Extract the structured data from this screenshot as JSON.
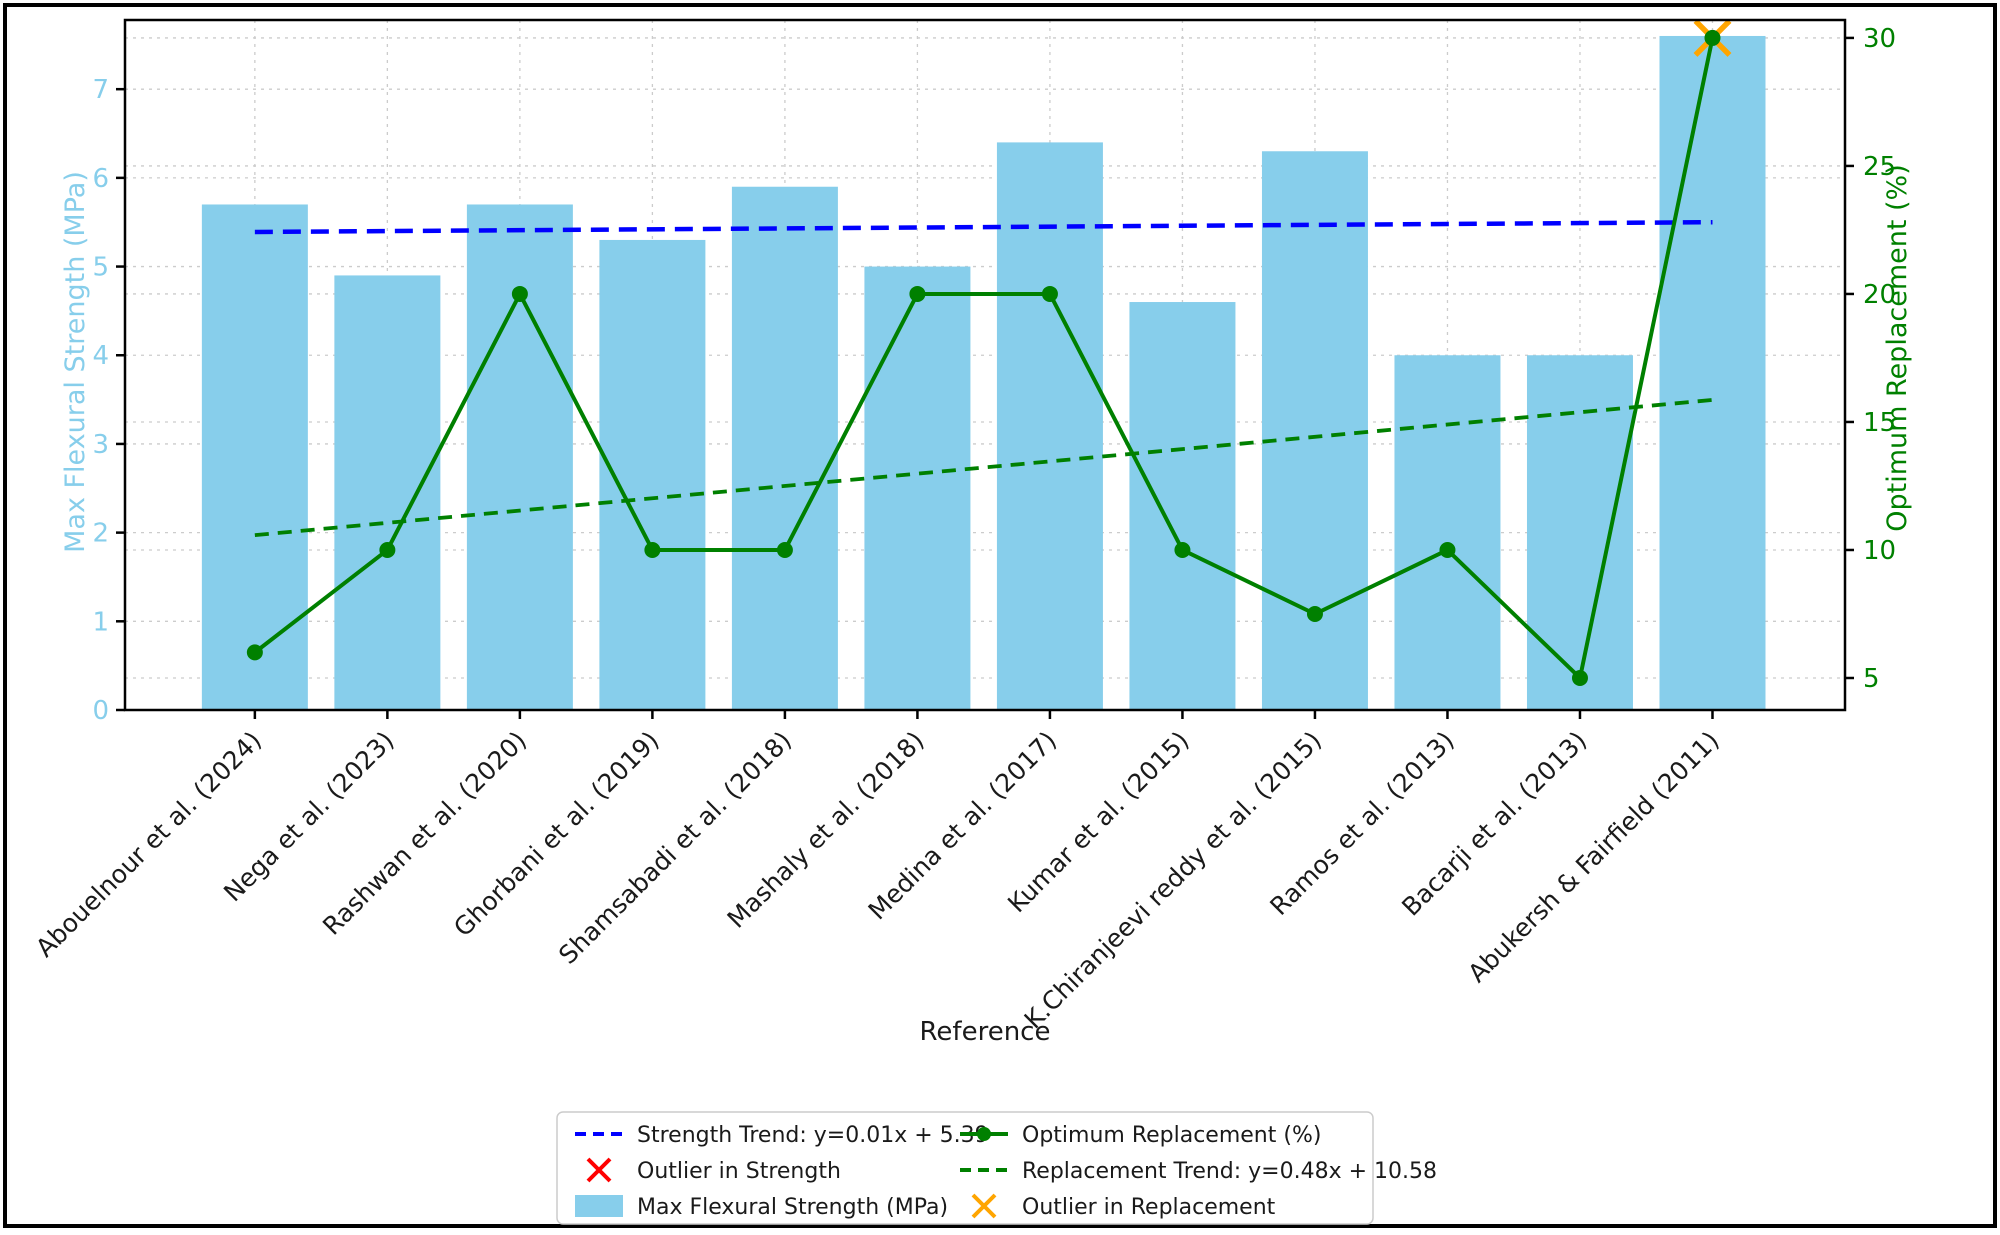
{
  "chart_data": {
    "type": "bar+line",
    "title": "",
    "xlabel": "Reference",
    "grid": true,
    "categories": [
      "Abouelnour et al. (2024)",
      "Nega et al. (2023)",
      "Rashwan et al. (2020)",
      "Ghorbani et al. (2019)",
      "Shamsabadi et al. (2018)",
      "Mashaly et al. (2018)",
      "Medina et al. (2017)",
      "Kumar et al. (2015)",
      "K.Chiranjeevi reddy et al. (2015)",
      "Ramos et al. (2013)",
      "Bacarji et al. (2013)",
      "Abukersh & Fairfield (2011)"
    ],
    "left_axis": {
      "label": "Max Flexural Strength (MPa)",
      "color": "#87CEEB",
      "ticks": [
        0,
        1,
        2,
        3,
        4,
        5,
        6,
        7
      ],
      "min": 0,
      "max": 7.78
    },
    "right_axis": {
      "label": "Optimum Replacement (%)",
      "color": "#008000",
      "ticks": [
        5,
        10,
        15,
        20,
        25,
        30
      ],
      "min": 3.75,
      "max": 30.7
    },
    "series": [
      {
        "name": "Max Flexural Strength (MPa)",
        "type": "bar",
        "axis": "left",
        "color": "#87CEEB",
        "values": [
          5.7,
          4.9,
          5.7,
          5.3,
          5.9,
          5.0,
          6.4,
          4.6,
          6.3,
          4.0,
          4.0,
          7.6
        ]
      },
      {
        "name": "Optimum Replacement (%)",
        "type": "line",
        "axis": "right",
        "color": "#008000",
        "values": [
          6,
          10,
          20,
          10,
          10,
          20,
          20,
          10,
          7.5,
          10,
          5,
          30
        ]
      },
      {
        "name": "Strength Trend: y=0.01x + 5.39",
        "type": "trend",
        "axis": "left",
        "color": "#0000FF",
        "slope": 0.01,
        "intercept": 5.39
      },
      {
        "name": "Replacement Trend: y=0.48x + 10.58",
        "type": "trend",
        "axis": "right",
        "color": "#008000",
        "slope": 0.48,
        "intercept": 10.58
      }
    ],
    "outliers": [
      {
        "name": "Outlier in Strength",
        "color": "#FF0000",
        "points": []
      },
      {
        "name": "Outlier in Replacement",
        "color": "#FFA500",
        "points": [
          {
            "index": 11,
            "value": 30
          }
        ]
      }
    ],
    "legend": {
      "position": "bottom-center",
      "entries": [
        {
          "label": "Strength Trend: y=0.01x + 5.39",
          "marker": "dashed-line",
          "color": "#0000FF"
        },
        {
          "label": "Outlier in Strength",
          "marker": "x",
          "color": "#FF0000"
        },
        {
          "label": "Max Flexural Strength (MPa)",
          "marker": "patch",
          "color": "#87CEEB"
        },
        {
          "label": "Optimum Replacement (%)",
          "marker": "line-dot",
          "color": "#008000"
        },
        {
          "label": "Replacement Trend: y=0.48x + 10.58",
          "marker": "dashed-line",
          "color": "#008000"
        },
        {
          "label": "Outlier in Replacement",
          "marker": "x",
          "color": "#FFA500"
        }
      ]
    },
    "style": {
      "grid_color": "#cccccc",
      "spine_color": "#000000",
      "text_color": "#1a1a1a"
    }
  }
}
